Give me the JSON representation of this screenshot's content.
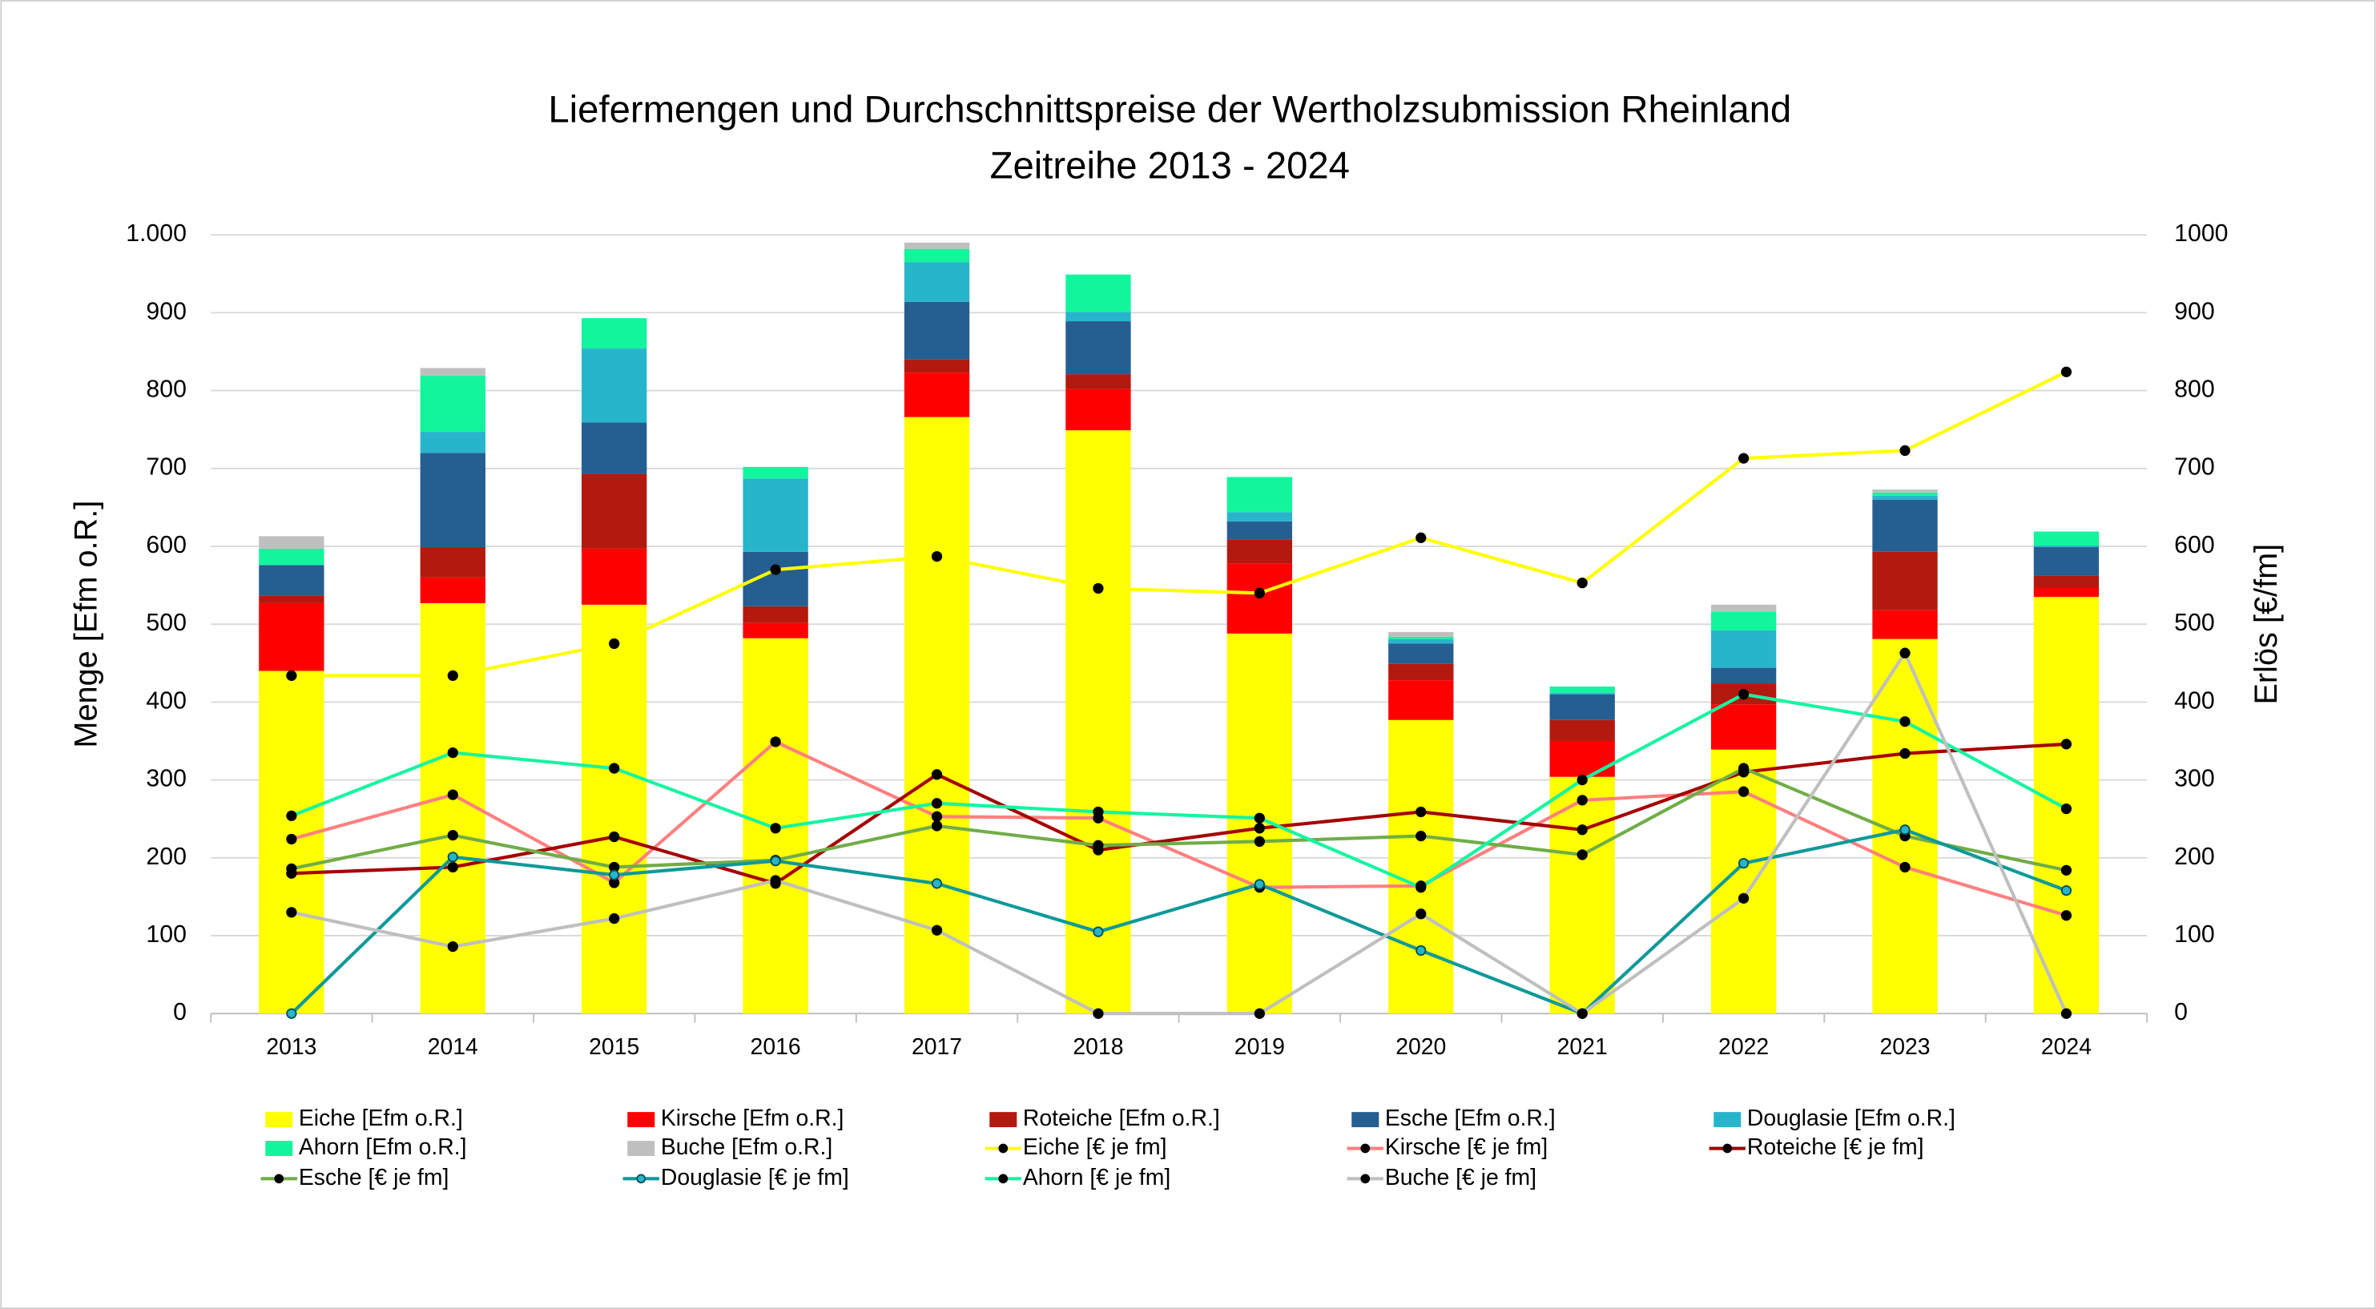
{
  "chart_data": {
    "type": "bar",
    "title": "Liefermengen und Durchschnittspreise der Wertholzsubmission Rheinland",
    "subtitle": "Zeitreihe 2013 - 2024",
    "y_label": "Menge [Efm o.R.]",
    "y2_label": "Erlös [€/fm]",
    "categories": [
      "2013",
      "2014",
      "2015",
      "2016",
      "2017",
      "2018",
      "2019",
      "2020",
      "2021",
      "2022",
      "2023",
      "2024"
    ],
    "ylim": [
      0,
      1000
    ],
    "yticks": [
      0,
      100,
      200,
      300,
      400,
      500,
      600,
      700,
      800,
      900,
      {
        "value": 1000,
        "label": "1.000"
      }
    ],
    "y2lim": [
      0,
      1000
    ],
    "y2ticks": [
      0,
      100,
      200,
      300,
      400,
      500,
      600,
      700,
      800,
      900,
      1000
    ],
    "grid": true,
    "stacked": true,
    "legend": "bottom",
    "series": [
      {
        "name": "Eiche [Efm o.R.]",
        "type": "bar",
        "color": "#ffff00",
        "values": [
          440,
          527,
          525,
          482,
          766,
          749,
          488,
          377,
          304,
          339,
          481,
          535
        ]
      },
      {
        "name": "Kirsche [Efm o.R.]",
        "type": "bar",
        "color": "#ff0000",
        "values": [
          87,
          33,
          72,
          20,
          57,
          53,
          90,
          51,
          46,
          58,
          37,
          12
        ]
      },
      {
        "name": "Roteiche [Efm o.R.]",
        "type": "bar",
        "color": "#b3190e",
        "values": [
          10,
          39,
          96,
          21,
          17,
          19,
          31,
          21,
          27,
          27,
          75,
          15
        ]
      },
      {
        "name": "Esche [Efm o.R.]",
        "type": "bar",
        "color": "#255e91",
        "values": [
          39,
          121,
          66,
          70,
          74,
          68,
          23,
          26,
          33,
          20,
          67,
          37
        ]
      },
      {
        "name": "Douglasie [Efm o.R.]",
        "type": "bar",
        "color": "#27b5cb",
        "values": [
          0,
          27,
          95,
          94,
          51,
          12,
          12,
          6,
          2,
          48,
          5,
          2
        ]
      },
      {
        "name": "Ahorn [Efm o.R.]",
        "type": "bar",
        "color": "#13f59d",
        "values": [
          21,
          72,
          39,
          15,
          17,
          48,
          45,
          3,
          8,
          24,
          4,
          18
        ]
      },
      {
        "name": "Buche [Efm o.R.]",
        "type": "bar",
        "color": "#bfbfbf",
        "values": [
          16,
          10,
          0,
          0,
          8,
          0,
          0,
          6,
          0,
          9,
          4,
          0
        ]
      },
      {
        "name": "Eiche [€ je fm]",
        "type": "line",
        "axis": "y2",
        "color": "#ffff00",
        "values": [
          434,
          434,
          475,
          570,
          587,
          546,
          540,
          611,
          553,
          713,
          723,
          824
        ]
      },
      {
        "name": "Kirsche [€ je fm]",
        "type": "line",
        "axis": "y2",
        "color": "#ff7f7f",
        "values": [
          224,
          281,
          168,
          349,
          253,
          251,
          162,
          164,
          274,
          285,
          188,
          126
        ]
      },
      {
        "name": "Roteiche [€ je fm]",
        "type": "line",
        "axis": "y2",
        "color": "#a50000",
        "values": [
          180,
          188,
          227,
          167,
          307,
          210,
          238,
          259,
          236,
          310,
          334,
          346
        ]
      },
      {
        "name": "Esche [€ je fm]",
        "type": "line",
        "axis": "y2",
        "color": "#70ad47",
        "values": [
          186,
          229,
          188,
          197,
          241,
          216,
          221,
          228,
          204,
          315,
          228,
          184
        ]
      },
      {
        "name": "Douglasie [€ je fm]",
        "type": "line",
        "axis": "y2",
        "color": "#0f9999",
        "values": [
          0,
          201,
          178,
          196,
          167,
          105,
          166,
          81,
          0,
          193,
          236,
          158
        ]
      },
      {
        "name": "Ahorn [€ je fm]",
        "type": "line",
        "axis": "y2",
        "color": "#15f5a0",
        "values": [
          254,
          335,
          315,
          238,
          270,
          259,
          251,
          162,
          300,
          410,
          375,
          263
        ]
      },
      {
        "name": "Buche [€ je fm]",
        "type": "line",
        "axis": "y2",
        "color": "#bfbfbf",
        "values": [
          130,
          86,
          122,
          171,
          107,
          0,
          0,
          128,
          0,
          148,
          463,
          0
        ]
      }
    ]
  }
}
